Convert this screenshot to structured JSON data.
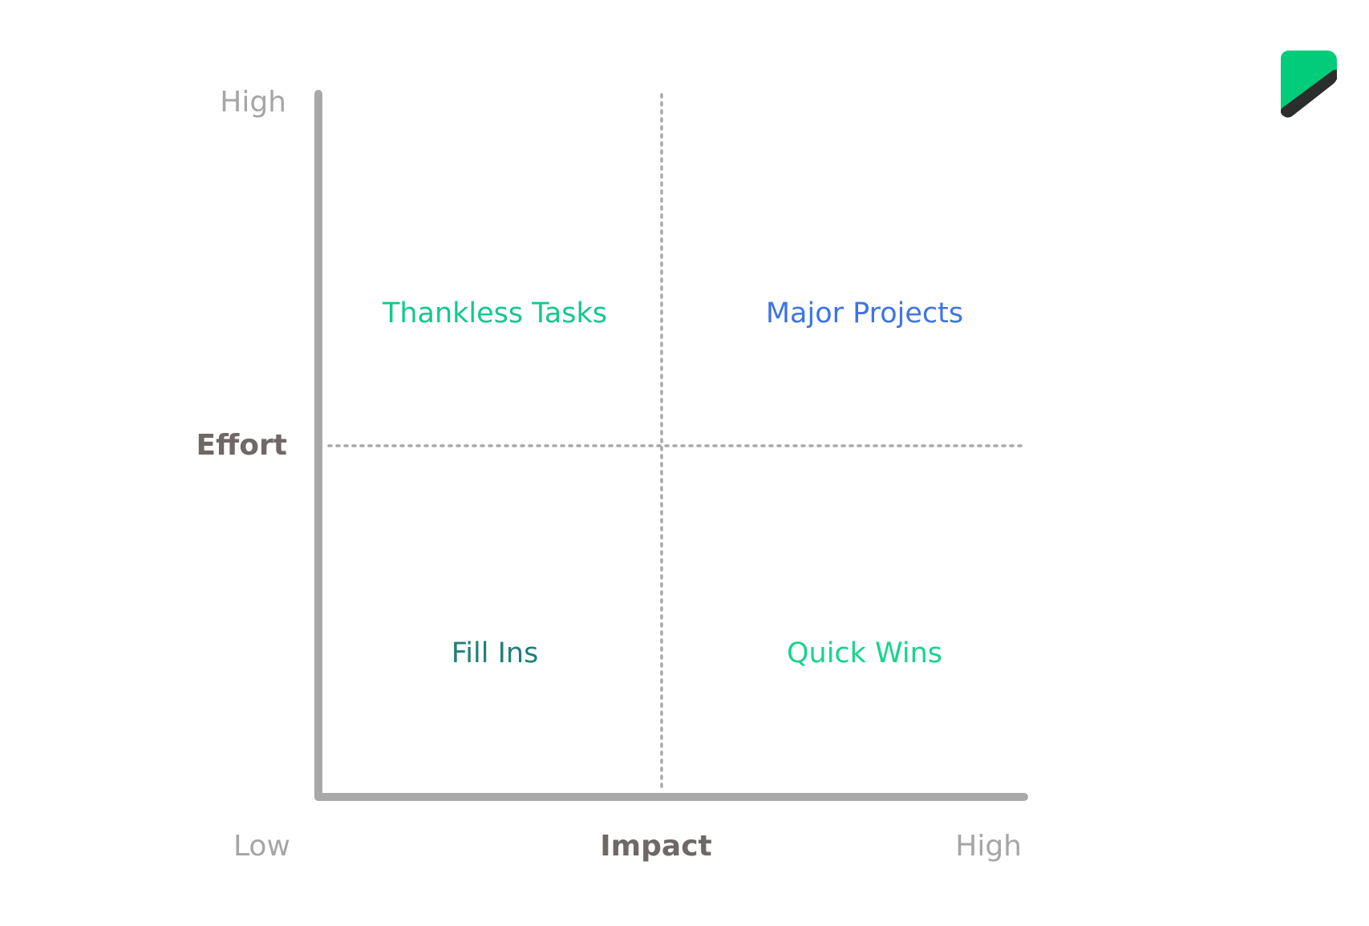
{
  "axes": {
    "y": {
      "high_label": "High",
      "title": "Effort"
    },
    "x": {
      "low_label": "Low",
      "title": "Impact",
      "high_label": "High"
    }
  },
  "quadrants": {
    "top_left": {
      "label": "Thankless Tasks",
      "color": "#14c98a"
    },
    "top_right": {
      "label": "Major Projects",
      "color": "#3e74e6"
    },
    "bottom_left": {
      "label": "Fill Ins",
      "color": "#1e7f78"
    },
    "bottom_right": {
      "label": "Quick Wins",
      "color": "#16d58c"
    }
  },
  "colors": {
    "axis_line": "#a9a9a9",
    "divider": "#a9a9a9",
    "logo_green": "#00cc7a",
    "logo_dark": "#2b2e2d"
  },
  "logo": {
    "icon": "brand-logo-icon"
  }
}
